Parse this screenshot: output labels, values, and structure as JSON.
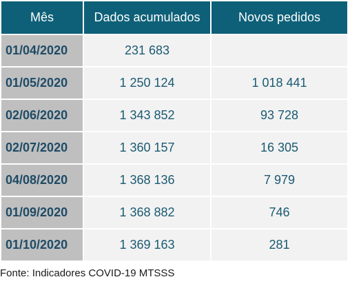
{
  "table": {
    "headers": [
      "Mês",
      "Dados acumulados",
      "Novos pedidos"
    ],
    "rows": [
      [
        "01/04/2020",
        "231 683",
        ""
      ],
      [
        "01/05/2020",
        "1 250 124",
        "1 018 441"
      ],
      [
        "02/06/2020",
        "1 343 852",
        "93 728"
      ],
      [
        "02/07/2020",
        "1 360 157",
        "16 305"
      ],
      [
        "04/08/2020",
        "1 368 136",
        "7 979"
      ],
      [
        "01/09/2020",
        "1 368 882",
        "746"
      ],
      [
        "01/10/2020",
        "1 369 163",
        "281"
      ]
    ]
  },
  "source": "Fonte: Indicadores COVID-19 MTSSS"
}
